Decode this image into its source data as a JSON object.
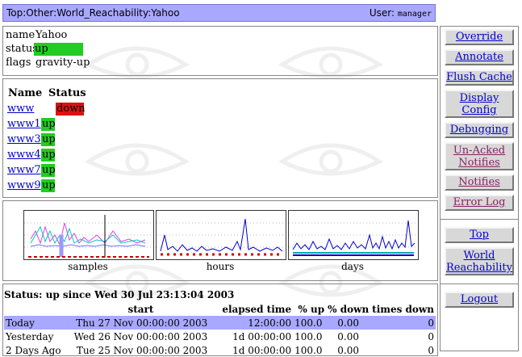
{
  "topbar": {
    "path": "Top:Other:World_Reachability:Yahoo",
    "user_label": "User:",
    "user_name": "manager"
  },
  "info": {
    "name_label": "name",
    "name_value": "Yahoo",
    "status_label": "status",
    "status_value": "up",
    "flags_label": "flags",
    "flags_value": "gravity-up"
  },
  "children": {
    "name_header": "Name",
    "status_header": "Status",
    "rows": [
      {
        "name": "www",
        "status": "down"
      },
      {
        "name": "www1",
        "status": "up"
      },
      {
        "name": "www3",
        "status": "up"
      },
      {
        "name": "www4",
        "status": "up"
      },
      {
        "name": "www7",
        "status": "up"
      },
      {
        "name": "www9",
        "status": "up"
      }
    ]
  },
  "graphs": {
    "samples": "samples",
    "hours": "hours",
    "days": "days"
  },
  "status": {
    "summary": "Status: up since Wed 30 Jul 23:13:04 2003",
    "headers": {
      "start": "start",
      "elapsed": "elapsed time",
      "pct_up": "% up",
      "pct_down": "% down",
      "times_down": "times down"
    },
    "rows": [
      {
        "period": "Today",
        "start": "Thu 27 Nov 00:00:00 2003",
        "elapsed": "12:00:00",
        "up": "100.0",
        "down": "0.00",
        "times": "0"
      },
      {
        "period": "Yesterday",
        "start": "Wed 26 Nov 00:00:00 2003",
        "elapsed": "1d 00:00:00",
        "up": "100.0",
        "down": "0.00",
        "times": "0"
      },
      {
        "period": "2 Days Ago",
        "start": "Tue 25 Nov 00:00:00 2003",
        "elapsed": "1d 00:00:00",
        "up": "100.0",
        "down": "0.00",
        "times": "0"
      }
    ]
  },
  "sidebar": {
    "override": "Override",
    "annotate": "Annotate",
    "flush_cache": "Flush Cache",
    "display_config": "Display Config",
    "debugging": "Debugging",
    "unacked": "Un-Acked Notifies",
    "notifies": "Notifies",
    "error_log": "Error Log",
    "top": "Top",
    "world_reach": "World Reachability",
    "logout": "Logout"
  },
  "colors": {
    "up": "#22cc22",
    "down": "#dd1111",
    "header_bar": "#a8a8ff",
    "today_row": "#a8a8ff"
  },
  "icons": [
    "eye-of-horus-watermark"
  ]
}
